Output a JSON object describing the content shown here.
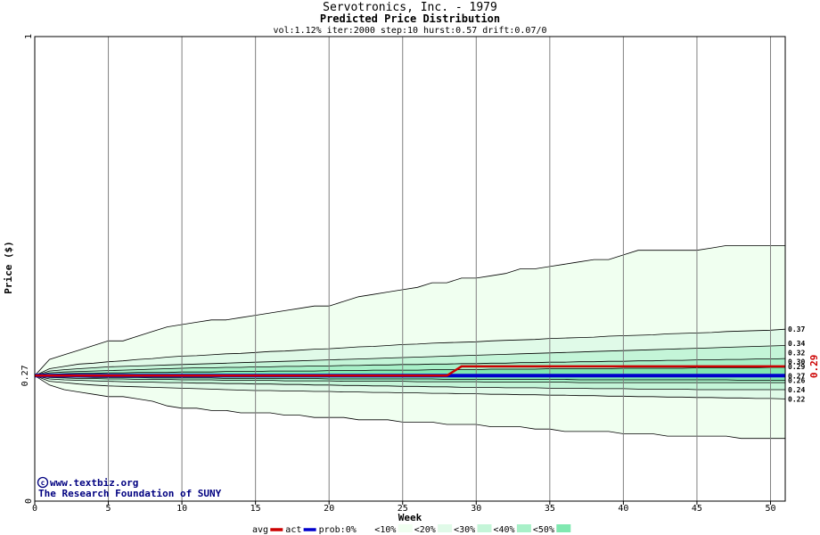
{
  "chart_data": {
    "type": "area",
    "title": "Servotronics, Inc. - 1979",
    "subtitle": "Predicted Price Distribution",
    "params": "vol:1.12% iter:2000 step:10 hurst:0.57 drift:0.07/0",
    "xlabel": "Week",
    "ylabel": "Price ($)",
    "xlim": [
      0,
      51
    ],
    "ylim": [
      0,
      1
    ],
    "x_ticks": [
      0,
      5,
      10,
      15,
      20,
      25,
      30,
      35,
      40,
      45,
      50
    ],
    "y_tick_labels": [
      "0",
      "1"
    ],
    "start_price_label": "0.27",
    "current_price_label": "0.29",
    "grid": true,
    "weeks": [
      0,
      1,
      2,
      3,
      4,
      5,
      6,
      7,
      8,
      9,
      10,
      11,
      12,
      13,
      14,
      15,
      16,
      17,
      18,
      19,
      20,
      21,
      22,
      23,
      24,
      25,
      26,
      27,
      28,
      29,
      30,
      31,
      32,
      33,
      34,
      35,
      36,
      37,
      38,
      39,
      40,
      41,
      42,
      43,
      44,
      45,
      46,
      47,
      48,
      49,
      50,
      51
    ],
    "quantile_bands": [
      {
        "name": "<10%",
        "color": "#f0fff0",
        "upper": [
          0.27,
          0.305,
          0.315,
          0.325,
          0.335,
          0.345,
          0.345,
          0.355,
          0.365,
          0.375,
          0.38,
          0.385,
          0.39,
          0.39,
          0.395,
          0.4,
          0.405,
          0.41,
          0.415,
          0.42,
          0.42,
          0.43,
          0.44,
          0.445,
          0.45,
          0.455,
          0.46,
          0.47,
          0.47,
          0.48,
          0.48,
          0.485,
          0.49,
          0.5,
          0.5,
          0.505,
          0.51,
          0.515,
          0.52,
          0.52,
          0.53,
          0.54,
          0.54,
          0.54,
          0.54,
          0.54,
          0.545,
          0.55,
          0.55,
          0.55,
          0.55,
          0.55
        ],
        "lower": [
          0.27,
          0.25,
          0.24,
          0.235,
          0.23,
          0.225,
          0.225,
          0.22,
          0.215,
          0.205,
          0.2,
          0.2,
          0.195,
          0.195,
          0.19,
          0.19,
          0.19,
          0.185,
          0.185,
          0.18,
          0.18,
          0.18,
          0.175,
          0.175,
          0.175,
          0.17,
          0.17,
          0.17,
          0.165,
          0.165,
          0.165,
          0.16,
          0.16,
          0.16,
          0.155,
          0.155,
          0.15,
          0.15,
          0.15,
          0.15,
          0.145,
          0.145,
          0.145,
          0.14,
          0.14,
          0.14,
          0.14,
          0.14,
          0.135,
          0.135,
          0.135,
          0.135
        ]
      },
      {
        "name": "<20%",
        "color": "#e0fae8",
        "upper": [
          0.27,
          0.285,
          0.29,
          0.295,
          0.297,
          0.3,
          0.302,
          0.305,
          0.307,
          0.31,
          0.312,
          0.313,
          0.315,
          0.317,
          0.318,
          0.32,
          0.322,
          0.323,
          0.325,
          0.327,
          0.328,
          0.33,
          0.332,
          0.333,
          0.335,
          0.337,
          0.338,
          0.34,
          0.341,
          0.342,
          0.343,
          0.345,
          0.346,
          0.347,
          0.348,
          0.35,
          0.351,
          0.352,
          0.353,
          0.355,
          0.356,
          0.357,
          0.358,
          0.36,
          0.361,
          0.362,
          0.363,
          0.365,
          0.366,
          0.367,
          0.368,
          0.37
        ],
        "lower": [
          0.27,
          0.258,
          0.255,
          0.252,
          0.25,
          0.248,
          0.247,
          0.246,
          0.245,
          0.244,
          0.243,
          0.242,
          0.241,
          0.24,
          0.239,
          0.238,
          0.238,
          0.237,
          0.237,
          0.236,
          0.236,
          0.235,
          0.235,
          0.234,
          0.234,
          0.233,
          0.233,
          0.232,
          0.232,
          0.231,
          0.231,
          0.23,
          0.23,
          0.229,
          0.229,
          0.228,
          0.228,
          0.227,
          0.227,
          0.226,
          0.226,
          0.225,
          0.225,
          0.224,
          0.224,
          0.223,
          0.223,
          0.222,
          0.222,
          0.221,
          0.221,
          0.22
        ]
      },
      {
        "name": "<30%",
        "color": "#c4f5d8",
        "upper": [
          0.27,
          0.28,
          0.283,
          0.285,
          0.287,
          0.289,
          0.29,
          0.291,
          0.292,
          0.293,
          0.294,
          0.295,
          0.296,
          0.297,
          0.298,
          0.299,
          0.3,
          0.301,
          0.302,
          0.303,
          0.304,
          0.305,
          0.306,
          0.307,
          0.308,
          0.309,
          0.31,
          0.311,
          0.312,
          0.313,
          0.314,
          0.315,
          0.316,
          0.317,
          0.318,
          0.319,
          0.32,
          0.321,
          0.322,
          0.323,
          0.324,
          0.325,
          0.326,
          0.327,
          0.328,
          0.329,
          0.33,
          0.331,
          0.332,
          0.333,
          0.334,
          0.335
        ],
        "lower": [
          0.27,
          0.263,
          0.261,
          0.26,
          0.259,
          0.258,
          0.257,
          0.256,
          0.256,
          0.255,
          0.255,
          0.254,
          0.254,
          0.253,
          0.253,
          0.252,
          0.252,
          0.251,
          0.251,
          0.25,
          0.25,
          0.249,
          0.249,
          0.248,
          0.248,
          0.247,
          0.247,
          0.246,
          0.246,
          0.245,
          0.245,
          0.245,
          0.244,
          0.244,
          0.244,
          0.243,
          0.243,
          0.243,
          0.242,
          0.242,
          0.242,
          0.241,
          0.241,
          0.241,
          0.241,
          0.24,
          0.24,
          0.24,
          0.24,
          0.24,
          0.24,
          0.24
        ]
      },
      {
        "name": "<40%",
        "color": "#a8f0c8",
        "upper": [
          0.27,
          0.276,
          0.278,
          0.279,
          0.28,
          0.281,
          0.282,
          0.283,
          0.284,
          0.285,
          0.286,
          0.287,
          0.287,
          0.288,
          0.288,
          0.289,
          0.289,
          0.29,
          0.29,
          0.291,
          0.291,
          0.292,
          0.292,
          0.293,
          0.293,
          0.294,
          0.294,
          0.295,
          0.295,
          0.296,
          0.296,
          0.297,
          0.297,
          0.298,
          0.298,
          0.299,
          0.299,
          0.3,
          0.3,
          0.301,
          0.301,
          0.302,
          0.302,
          0.303,
          0.303,
          0.304,
          0.304,
          0.305,
          0.305,
          0.306,
          0.306,
          0.307
        ],
        "lower": [
          0.27,
          0.266,
          0.265,
          0.264,
          0.264,
          0.263,
          0.263,
          0.262,
          0.262,
          0.262,
          0.261,
          0.261,
          0.261,
          0.26,
          0.26,
          0.26,
          0.26,
          0.259,
          0.259,
          0.259,
          0.259,
          0.258,
          0.258,
          0.258,
          0.258,
          0.258,
          0.257,
          0.257,
          0.257,
          0.257,
          0.257,
          0.256,
          0.256,
          0.256,
          0.256,
          0.256,
          0.256,
          0.255,
          0.255,
          0.255,
          0.255,
          0.255,
          0.255,
          0.255,
          0.255,
          0.255,
          0.255,
          0.255,
          0.255,
          0.255,
          0.255,
          0.255
        ]
      },
      {
        "name": "<50%",
        "color": "#80e8b0",
        "upper": [
          0.27,
          0.273,
          0.274,
          0.275,
          0.275,
          0.276,
          0.276,
          0.277,
          0.277,
          0.277,
          0.278,
          0.278,
          0.278,
          0.279,
          0.279,
          0.279,
          0.28,
          0.28,
          0.28,
          0.28,
          0.281,
          0.281,
          0.281,
          0.282,
          0.282,
          0.282,
          0.282,
          0.283,
          0.283,
          0.283,
          0.283,
          0.284,
          0.284,
          0.284,
          0.284,
          0.285,
          0.285,
          0.285,
          0.285,
          0.285,
          0.286,
          0.286,
          0.286,
          0.286,
          0.286,
          0.287,
          0.287,
          0.287,
          0.287,
          0.287,
          0.288,
          0.288
        ],
        "lower": [
          0.27,
          0.268,
          0.267,
          0.267,
          0.266,
          0.266,
          0.266,
          0.266,
          0.265,
          0.265,
          0.265,
          0.265,
          0.265,
          0.264,
          0.264,
          0.264,
          0.264,
          0.264,
          0.264,
          0.264,
          0.263,
          0.263,
          0.263,
          0.263,
          0.263,
          0.263,
          0.263,
          0.263,
          0.262,
          0.262,
          0.262,
          0.262,
          0.262,
          0.262,
          0.262,
          0.262,
          0.262,
          0.261,
          0.261,
          0.261,
          0.261,
          0.261,
          0.261,
          0.261,
          0.261,
          0.261,
          0.261,
          0.261,
          0.26,
          0.26,
          0.26,
          0.26
        ]
      }
    ],
    "series": [
      {
        "name": "avg",
        "color": "#cc0000",
        "x": [
          0,
          28,
          29,
          51
        ],
        "y": [
          0.27,
          0.27,
          0.29,
          0.29
        ]
      },
      {
        "name": "act",
        "color": "#0000cc",
        "x": [
          0,
          51
        ],
        "y": [
          0.27,
          0.27
        ]
      }
    ],
    "level_labels": [
      "0.37",
      "0.34",
      "0.32",
      "0.30",
      "0.29",
      "0.27",
      "0.26",
      "0.24",
      "0.22"
    ],
    "level_values": [
      0.37,
      0.34,
      0.32,
      0.3,
      0.29,
      0.27,
      0.26,
      0.24,
      0.22
    ],
    "legend": {
      "position": "bottom",
      "items": [
        {
          "label": "avg",
          "kind": "line",
          "color": "#cc0000"
        },
        {
          "label": "act",
          "kind": "line",
          "color": "#0000cc"
        },
        {
          "label": "prob:0%",
          "kind": "box",
          "color": "#ffffff"
        },
        {
          "label": "<10%",
          "kind": "box",
          "color": "#f0fff0"
        },
        {
          "label": "<20%",
          "kind": "box",
          "color": "#e0fae8"
        },
        {
          "label": "<30%",
          "kind": "box",
          "color": "#c4f5d8"
        },
        {
          "label": "<40%",
          "kind": "box",
          "color": "#a8f0c8"
        },
        {
          "label": "<50%",
          "kind": "box",
          "color": "#80e8b0"
        }
      ]
    }
  },
  "watermark": {
    "line1": "www.textbiz.org",
    "line2": "The Research Foundation of SUNY"
  }
}
